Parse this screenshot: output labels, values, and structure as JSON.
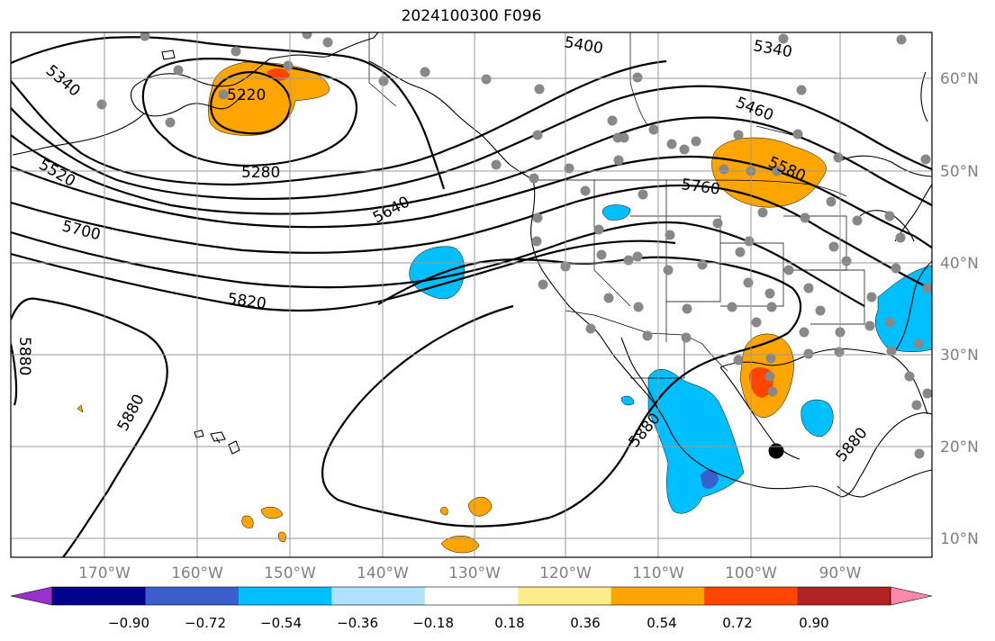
{
  "title": "2024100300 F096",
  "lat_labels": [
    "60°N",
    "50°N",
    "40°N",
    "30°N",
    "20°N",
    "10°N"
  ],
  "lon_labels": [
    "170°W",
    "160°W",
    "150°W",
    "140°W",
    "130°W",
    "120°W",
    "110°W",
    "100°W",
    "90°W"
  ],
  "contour_labels": [
    "5220",
    "5280",
    "5340",
    "5400",
    "5340",
    "5460",
    "5580",
    "5520",
    "5640",
    "5760",
    "5700",
    "5820",
    "5880",
    "5880",
    "5880",
    "5880"
  ],
  "colorbar": {
    "tick_labels": [
      "−0.90",
      "−0.72",
      "−0.54",
      "−0.36",
      "−0.18",
      "0.18",
      "0.36",
      "0.54",
      "0.72",
      "0.90"
    ],
    "colors": [
      "#9932cc",
      "#00008b",
      "#3a5fcd",
      "#00bfff",
      "#b0e2ff",
      "#ffffff",
      "#ffec8b",
      "#ffa500",
      "#ff4500",
      "#b22222",
      "#ff88aa"
    ]
  },
  "icons": {
    "station_marker": "gray-dot",
    "center_marker": "black-dot"
  }
}
